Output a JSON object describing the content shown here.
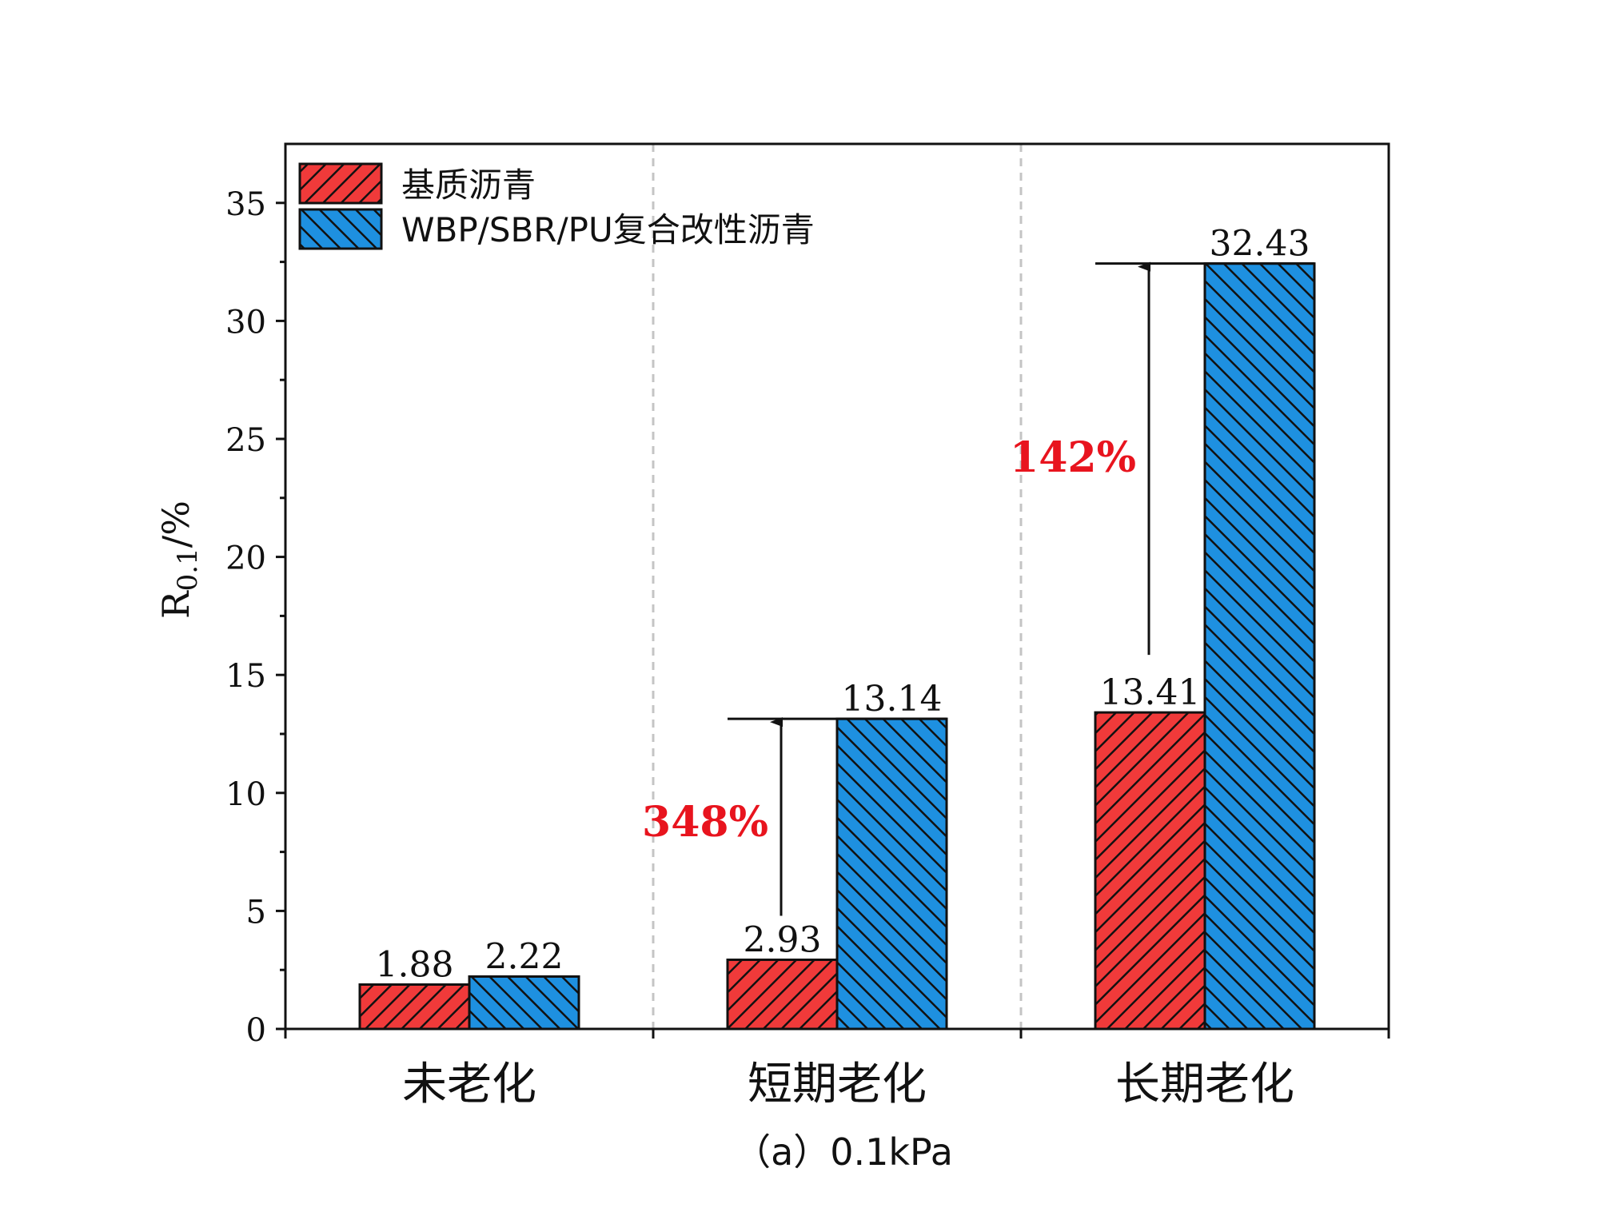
{
  "chart_data": {
    "type": "bar",
    "categories": [
      "未老化",
      "短期老化",
      "长期老化"
    ],
    "series": [
      {
        "name": "基质沥青",
        "values": [
          1.88,
          2.93,
          13.41
        ],
        "color": "#f03a3a",
        "hatch": "forward"
      },
      {
        "name": "WBP/SBR/PU复合改性沥青",
        "values": [
          2.22,
          13.14,
          32.43
        ],
        "color": "#1e90e0",
        "hatch": "backward"
      }
    ],
    "value_labels": [
      [
        "1.88",
        "2.93",
        "13.41"
      ],
      [
        "2.22",
        "13.14",
        "32.43"
      ]
    ],
    "ylabel_main": "R",
    "ylabel_sub": "0.1",
    "ylabel_unit": "/%",
    "ylim": [
      0,
      37.5
    ],
    "yticks": [
      "0",
      "5",
      "10",
      "15",
      "20",
      "25",
      "30",
      "35"
    ],
    "ytick_values": [
      0,
      5,
      10,
      15,
      20,
      25,
      30,
      35
    ],
    "caption": "（a）0.1kPa",
    "legend_position": "top-left",
    "annotations": [
      {
        "category_index": 1,
        "text": "348%",
        "from": 2.93,
        "to": 13.14
      },
      {
        "category_index": 2,
        "text": "142%",
        "from": 13.41,
        "to": 32.43
      }
    ],
    "annotation_color": "#e8141e"
  }
}
